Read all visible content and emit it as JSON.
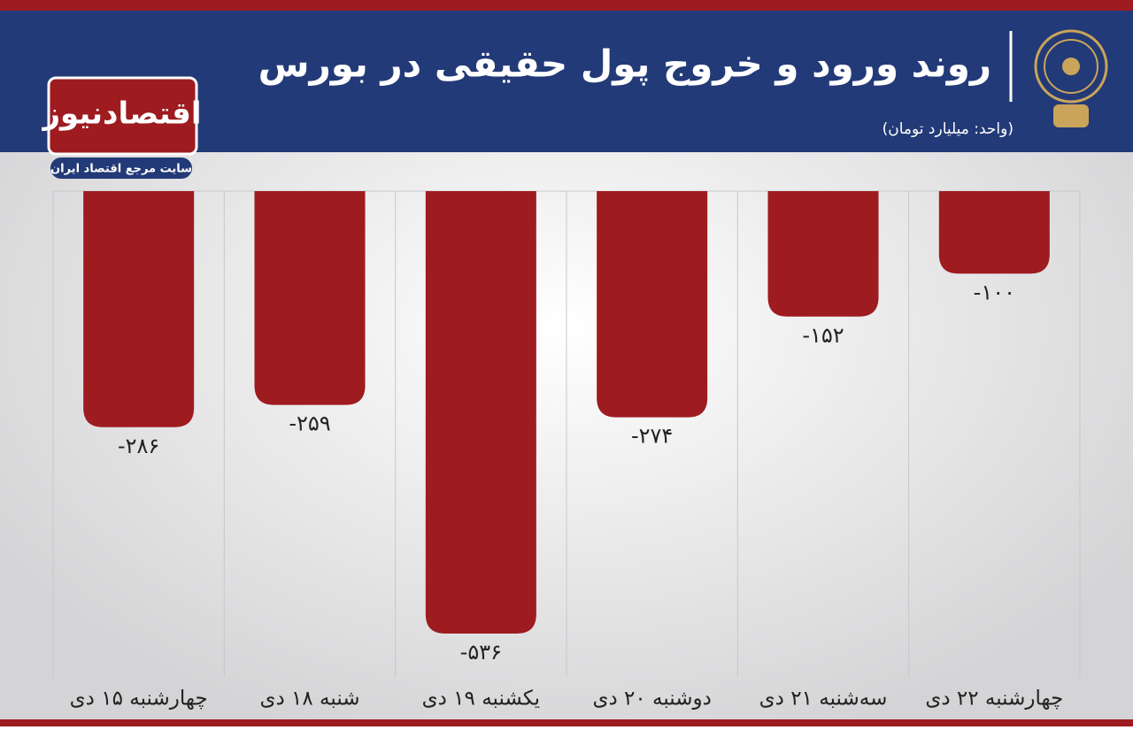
{
  "chart_data": {
    "type": "bar",
    "title": "روند ورود و خروج پول حقیقی در بورس",
    "subtitle": "(واحد: میلیارد تومان)",
    "brand": "اقتصادنیوز",
    "brand_tagline": "سایت مرجع اقتصاد ایران",
    "categories": [
      "چهارشنبه ۱۵ دی",
      "شنبه ۱۸ دی",
      "یکشنبه ۱۹ دی",
      "دوشنبه ۲۰ دی",
      "سه‌شنبه ۲۱ دی",
      "چهارشنبه ۲۲ دی"
    ],
    "values": [
      -286,
      -259,
      -536,
      -274,
      -152,
      -100
    ],
    "value_labels": [
      "-۲۸۶",
      "-۲۵۹",
      "-۵۳۶",
      "-۲۷۴",
      "-۱۵۲",
      "-۱۰۰"
    ],
    "color": "#9e1b20"
  }
}
